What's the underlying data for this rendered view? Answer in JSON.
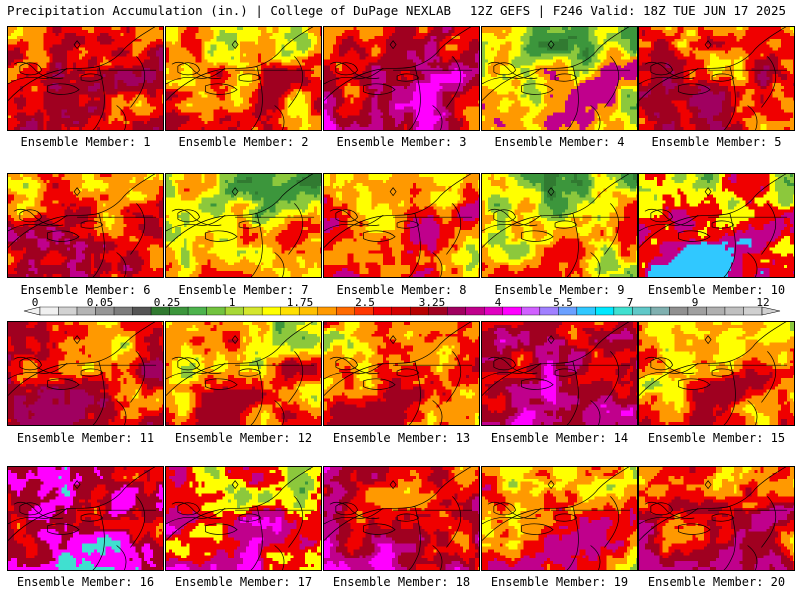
{
  "header": {
    "left_title": "Precipitation Accumulation (in.) | College of DuPage NEXLAB",
    "right_title": "12Z GEFS | F246 Valid: 18Z TUE JUN 17 2025"
  },
  "colorbar": {
    "labels": [
      "0",
      "0.05",
      "0.25",
      "1",
      "1.75",
      "2.5",
      "3.25",
      "4",
      "5.5",
      "7",
      "9",
      "12"
    ],
    "colors": [
      "#f0f0f0",
      "#d2d2d2",
      "#b4b4b4",
      "#969696",
      "#7d7d7d",
      "#555555",
      "#317a31",
      "#3c963c",
      "#4db34d",
      "#72c33f",
      "#a7d836",
      "#d4e62d",
      "#ffff00",
      "#ffe000",
      "#ffc000",
      "#ff9900",
      "#ff6a00",
      "#ff3700",
      "#f00000",
      "#d40000",
      "#b80000",
      "#a00020",
      "#a00060",
      "#c0008c",
      "#e000c0",
      "#ff00ff",
      "#d060ff",
      "#a080ff",
      "#6aa0ff",
      "#30c8ff",
      "#00e8ff",
      "#40e0d0",
      "#60c8c8",
      "#80b0b0",
      "#909090",
      "#a0a0a0",
      "#b0b0b0",
      "#c0c0c0",
      "#d0d0d0"
    ]
  },
  "panels": [
    {
      "label": "Ensemble Member: 1",
      "palette": [
        "#8cc83c",
        "#ffff00",
        "#ff9900",
        "#f00000",
        "#a00020",
        "#a00060"
      ]
    },
    {
      "label": "Ensemble Member: 2",
      "palette": [
        "#3c963c",
        "#8cc83c",
        "#ffff00",
        "#ff9900",
        "#f00000",
        "#a00020"
      ]
    },
    {
      "label": "Ensemble Member: 3",
      "palette": [
        "#ffff00",
        "#ff9900",
        "#f00000",
        "#a00020",
        "#c0008c",
        "#ff00ff"
      ]
    },
    {
      "label": "Ensemble Member: 4",
      "palette": [
        "#317a31",
        "#3c963c",
        "#8cc83c",
        "#ffff00",
        "#ff9900",
        "#c0008c"
      ]
    },
    {
      "label": "Ensemble Member: 5",
      "palette": [
        "#8cc83c",
        "#ffff00",
        "#ff9900",
        "#f00000",
        "#a00020",
        "#a00060"
      ]
    },
    {
      "label": "Ensemble Member: 6",
      "palette": [
        "#8cc83c",
        "#ffff00",
        "#ff9900",
        "#f00000",
        "#a00020",
        "#c0008c"
      ]
    },
    {
      "label": "Ensemble Member: 7",
      "palette": [
        "#317a31",
        "#3c963c",
        "#8cc83c",
        "#ffff00",
        "#ff9900",
        "#f00000"
      ]
    },
    {
      "label": "Ensemble Member: 8",
      "palette": [
        "#3c963c",
        "#8cc83c",
        "#ffff00",
        "#ff9900",
        "#f00000",
        "#c0008c"
      ]
    },
    {
      "label": "Ensemble Member: 9",
      "palette": [
        "#317a31",
        "#3c963c",
        "#8cc83c",
        "#ffff00",
        "#ff9900",
        "#f00000"
      ]
    },
    {
      "label": "Ensemble Member: 10",
      "palette": [
        "#3c963c",
        "#8cc83c",
        "#ffff00",
        "#f00000",
        "#c0008c",
        "#30c8ff"
      ]
    },
    {
      "label": "Ensemble Member: 11",
      "palette": [
        "#8cc83c",
        "#ffff00",
        "#ff9900",
        "#f00000",
        "#a00020",
        "#a00060"
      ]
    },
    {
      "label": "Ensemble Member: 12",
      "palette": [
        "#3c963c",
        "#8cc83c",
        "#ffff00",
        "#ff9900",
        "#f00000",
        "#a00020"
      ]
    },
    {
      "label": "Ensemble Member: 13",
      "palette": [
        "#3c963c",
        "#8cc83c",
        "#ffff00",
        "#ff9900",
        "#f00000",
        "#a00020"
      ]
    },
    {
      "label": "Ensemble Member: 14",
      "palette": [
        "#ffff00",
        "#ff9900",
        "#f00000",
        "#a00020",
        "#c0008c",
        "#ff00ff"
      ]
    },
    {
      "label": "Ensemble Member: 15",
      "palette": [
        "#3c963c",
        "#8cc83c",
        "#ffff00",
        "#ff9900",
        "#f00000",
        "#a00020"
      ]
    },
    {
      "label": "Ensemble Member: 16",
      "palette": [
        "#ffff00",
        "#ff9900",
        "#f00000",
        "#a00020",
        "#ff00ff",
        "#40e0d0"
      ]
    },
    {
      "label": "Ensemble Member: 17",
      "palette": [
        "#3c963c",
        "#8cc83c",
        "#ffff00",
        "#f00000",
        "#c0008c",
        "#ff00ff"
      ]
    },
    {
      "label": "Ensemble Member: 18",
      "palette": [
        "#ffff00",
        "#ff9900",
        "#f00000",
        "#a00020",
        "#c0008c",
        "#ff00ff"
      ]
    },
    {
      "label": "Ensemble Member: 19",
      "palette": [
        "#3c963c",
        "#8cc83c",
        "#ffff00",
        "#ff9900",
        "#f00000",
        "#c0008c"
      ]
    },
    {
      "label": "Ensemble Member: 20",
      "palette": [
        "#8cc83c",
        "#ffff00",
        "#ff9900",
        "#f00000",
        "#a00020",
        "#c0008c"
      ]
    }
  ]
}
